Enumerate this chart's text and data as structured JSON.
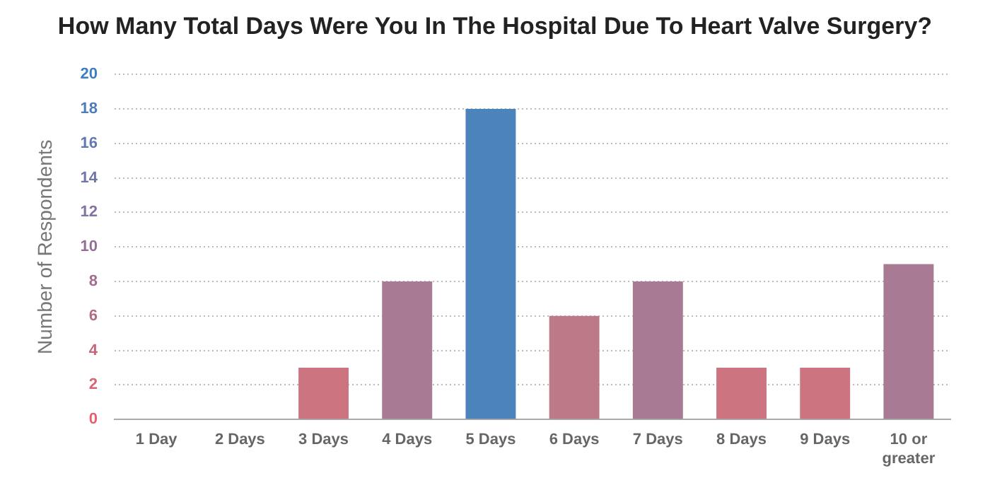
{
  "chart_data": {
    "type": "bar",
    "title": "How Many Total Days Were You In The Hospital Due To Heart Valve Surgery?",
    "ylabel": "Number of Respondents",
    "categories": [
      "1 Day",
      "2 Days",
      "3 Days",
      "4 Days",
      "5 Days",
      "6 Days",
      "7 Days",
      "8 Days",
      "9 Days",
      "10 or greater"
    ],
    "values": [
      0,
      0,
      3,
      8,
      18,
      6,
      8,
      3,
      3,
      9
    ],
    "colors": [
      "#cc7480",
      "#cc7480",
      "#cc7480",
      "#a97a93",
      "#4a84bb",
      "#bc7a88",
      "#a97a93",
      "#cc7480",
      "#cc7480",
      "#a97a93"
    ],
    "ylim": [
      0,
      20
    ],
    "yticks": [
      0,
      2,
      4,
      6,
      8,
      10,
      12,
      14,
      16,
      18,
      20
    ],
    "grid": "y",
    "legend": false
  }
}
